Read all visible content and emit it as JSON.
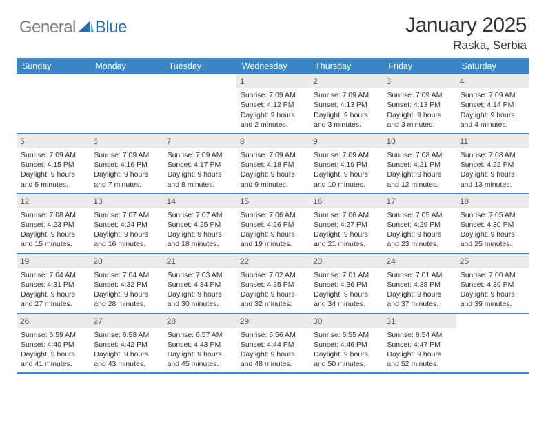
{
  "logo": {
    "text1": "General",
    "text2": "Blue"
  },
  "title": "January 2025",
  "location": "Raska, Serbia",
  "style": {
    "accent": "#3b85c4",
    "daynum_bg": "#ebebeb",
    "body_font": "Arial",
    "header_fontsize": 12.5,
    "cell_fontsize": 10.5,
    "title_fontsize": 30,
    "location_fontsize": 17
  },
  "dayHeaders": [
    "Sunday",
    "Monday",
    "Tuesday",
    "Wednesday",
    "Thursday",
    "Friday",
    "Saturday"
  ],
  "weeks": [
    [
      {
        "n": "",
        "sr": "",
        "ss": "",
        "dl": "",
        "empty": true
      },
      {
        "n": "",
        "sr": "",
        "ss": "",
        "dl": "",
        "empty": true
      },
      {
        "n": "",
        "sr": "",
        "ss": "",
        "dl": "",
        "empty": true
      },
      {
        "n": "1",
        "sr": "Sunrise: 7:09 AM",
        "ss": "Sunset: 4:12 PM",
        "dl": "Daylight: 9 hours and 2 minutes."
      },
      {
        "n": "2",
        "sr": "Sunrise: 7:09 AM",
        "ss": "Sunset: 4:13 PM",
        "dl": "Daylight: 9 hours and 3 minutes."
      },
      {
        "n": "3",
        "sr": "Sunrise: 7:09 AM",
        "ss": "Sunset: 4:13 PM",
        "dl": "Daylight: 9 hours and 3 minutes."
      },
      {
        "n": "4",
        "sr": "Sunrise: 7:09 AM",
        "ss": "Sunset: 4:14 PM",
        "dl": "Daylight: 9 hours and 4 minutes."
      }
    ],
    [
      {
        "n": "5",
        "sr": "Sunrise: 7:09 AM",
        "ss": "Sunset: 4:15 PM",
        "dl": "Daylight: 9 hours and 5 minutes."
      },
      {
        "n": "6",
        "sr": "Sunrise: 7:09 AM",
        "ss": "Sunset: 4:16 PM",
        "dl": "Daylight: 9 hours and 7 minutes."
      },
      {
        "n": "7",
        "sr": "Sunrise: 7:09 AM",
        "ss": "Sunset: 4:17 PM",
        "dl": "Daylight: 9 hours and 8 minutes."
      },
      {
        "n": "8",
        "sr": "Sunrise: 7:09 AM",
        "ss": "Sunset: 4:18 PM",
        "dl": "Daylight: 9 hours and 9 minutes."
      },
      {
        "n": "9",
        "sr": "Sunrise: 7:09 AM",
        "ss": "Sunset: 4:19 PM",
        "dl": "Daylight: 9 hours and 10 minutes."
      },
      {
        "n": "10",
        "sr": "Sunrise: 7:08 AM",
        "ss": "Sunset: 4:21 PM",
        "dl": "Daylight: 9 hours and 12 minutes."
      },
      {
        "n": "11",
        "sr": "Sunrise: 7:08 AM",
        "ss": "Sunset: 4:22 PM",
        "dl": "Daylight: 9 hours and 13 minutes."
      }
    ],
    [
      {
        "n": "12",
        "sr": "Sunrise: 7:08 AM",
        "ss": "Sunset: 4:23 PM",
        "dl": "Daylight: 9 hours and 15 minutes."
      },
      {
        "n": "13",
        "sr": "Sunrise: 7:07 AM",
        "ss": "Sunset: 4:24 PM",
        "dl": "Daylight: 9 hours and 16 minutes."
      },
      {
        "n": "14",
        "sr": "Sunrise: 7:07 AM",
        "ss": "Sunset: 4:25 PM",
        "dl": "Daylight: 9 hours and 18 minutes."
      },
      {
        "n": "15",
        "sr": "Sunrise: 7:06 AM",
        "ss": "Sunset: 4:26 PM",
        "dl": "Daylight: 9 hours and 19 minutes."
      },
      {
        "n": "16",
        "sr": "Sunrise: 7:06 AM",
        "ss": "Sunset: 4:27 PM",
        "dl": "Daylight: 9 hours and 21 minutes."
      },
      {
        "n": "17",
        "sr": "Sunrise: 7:05 AM",
        "ss": "Sunset: 4:29 PM",
        "dl": "Daylight: 9 hours and 23 minutes."
      },
      {
        "n": "18",
        "sr": "Sunrise: 7:05 AM",
        "ss": "Sunset: 4:30 PM",
        "dl": "Daylight: 9 hours and 25 minutes."
      }
    ],
    [
      {
        "n": "19",
        "sr": "Sunrise: 7:04 AM",
        "ss": "Sunset: 4:31 PM",
        "dl": "Daylight: 9 hours and 27 minutes."
      },
      {
        "n": "20",
        "sr": "Sunrise: 7:04 AM",
        "ss": "Sunset: 4:32 PM",
        "dl": "Daylight: 9 hours and 28 minutes."
      },
      {
        "n": "21",
        "sr": "Sunrise: 7:03 AM",
        "ss": "Sunset: 4:34 PM",
        "dl": "Daylight: 9 hours and 30 minutes."
      },
      {
        "n": "22",
        "sr": "Sunrise: 7:02 AM",
        "ss": "Sunset: 4:35 PM",
        "dl": "Daylight: 9 hours and 32 minutes."
      },
      {
        "n": "23",
        "sr": "Sunrise: 7:01 AM",
        "ss": "Sunset: 4:36 PM",
        "dl": "Daylight: 9 hours and 34 minutes."
      },
      {
        "n": "24",
        "sr": "Sunrise: 7:01 AM",
        "ss": "Sunset: 4:38 PM",
        "dl": "Daylight: 9 hours and 37 minutes."
      },
      {
        "n": "25",
        "sr": "Sunrise: 7:00 AM",
        "ss": "Sunset: 4:39 PM",
        "dl": "Daylight: 9 hours and 39 minutes."
      }
    ],
    [
      {
        "n": "26",
        "sr": "Sunrise: 6:59 AM",
        "ss": "Sunset: 4:40 PM",
        "dl": "Daylight: 9 hours and 41 minutes."
      },
      {
        "n": "27",
        "sr": "Sunrise: 6:58 AM",
        "ss": "Sunset: 4:42 PM",
        "dl": "Daylight: 9 hours and 43 minutes."
      },
      {
        "n": "28",
        "sr": "Sunrise: 6:57 AM",
        "ss": "Sunset: 4:43 PM",
        "dl": "Daylight: 9 hours and 45 minutes."
      },
      {
        "n": "29",
        "sr": "Sunrise: 6:56 AM",
        "ss": "Sunset: 4:44 PM",
        "dl": "Daylight: 9 hours and 48 minutes."
      },
      {
        "n": "30",
        "sr": "Sunrise: 6:55 AM",
        "ss": "Sunset: 4:46 PM",
        "dl": "Daylight: 9 hours and 50 minutes."
      },
      {
        "n": "31",
        "sr": "Sunrise: 6:54 AM",
        "ss": "Sunset: 4:47 PM",
        "dl": "Daylight: 9 hours and 52 minutes."
      },
      {
        "n": "",
        "sr": "",
        "ss": "",
        "dl": "",
        "empty": true
      }
    ]
  ]
}
